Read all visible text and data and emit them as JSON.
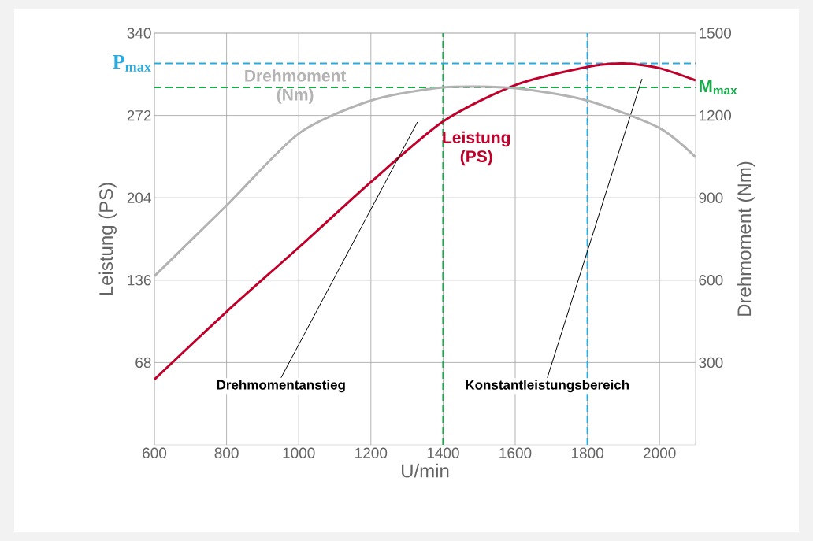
{
  "chart_data": {
    "type": "line",
    "xlabel": "U/min",
    "ylabel": "Leistung (PS)",
    "y2label": "Drehmoment (Nm)",
    "x": [
      600,
      800,
      1000,
      1200,
      1400,
      1600,
      1800,
      1900,
      2000,
      2100
    ],
    "series": [
      {
        "name": "Drehmoment (Nm)",
        "color": "#b3b3b3",
        "axis": "y2",
        "values": [
          615,
          872,
          1134,
          1254,
          1302,
          1299,
          1254,
          null,
          1154,
          1048
        ]
      },
      {
        "name": "Leistung (PS)",
        "color": "#c0002a",
        "axis": "y",
        "values": [
          54,
          110,
          163,
          217,
          267,
          297,
          312,
          315,
          311,
          301
        ]
      }
    ],
    "xlim": [
      600,
      2100
    ],
    "xticks": [
      600,
      800,
      1000,
      1200,
      1400,
      1600,
      1800,
      2000
    ],
    "ylim": [
      0,
      340
    ],
    "yticks": [
      68,
      136,
      204,
      272,
      340
    ],
    "y2lim": [
      0,
      1500
    ],
    "y2ticks": [
      300,
      600,
      900,
      1200,
      1500
    ],
    "grid": true,
    "marker": "none",
    "line_style": "solid",
    "ref_lines": [
      {
        "axis": "y",
        "value": 315,
        "label": "P$_{max}$",
        "color": "#29abe2",
        "line_style": "dashed"
      },
      {
        "axis": "y2",
        "value": 1302,
        "label": "M$_{max}$",
        "color": "#1aaa4b",
        "line_style": "dashed"
      },
      {
        "axis": "x",
        "value": 1400,
        "color": "#1aaa4b",
        "line_style": "dashed"
      },
      {
        "axis": "x",
        "value": 1800,
        "color": "#29abe2",
        "line_style": "dashed"
      }
    ],
    "annotations": [
      "Drehmomentanstieg",
      "Konstantleistungsbereich"
    ]
  }
}
